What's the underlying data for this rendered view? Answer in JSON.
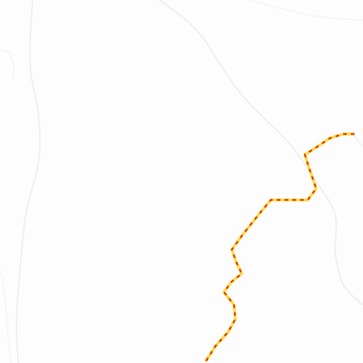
{
  "map": {
    "background_color": "#fdfdfd",
    "contour_color": "#f1f1f1",
    "route_colors": {
      "casing": "#ffd84a",
      "dash": "#d93d00"
    },
    "layers": [
      "terrain-contours",
      "dashed-route"
    ]
  }
}
